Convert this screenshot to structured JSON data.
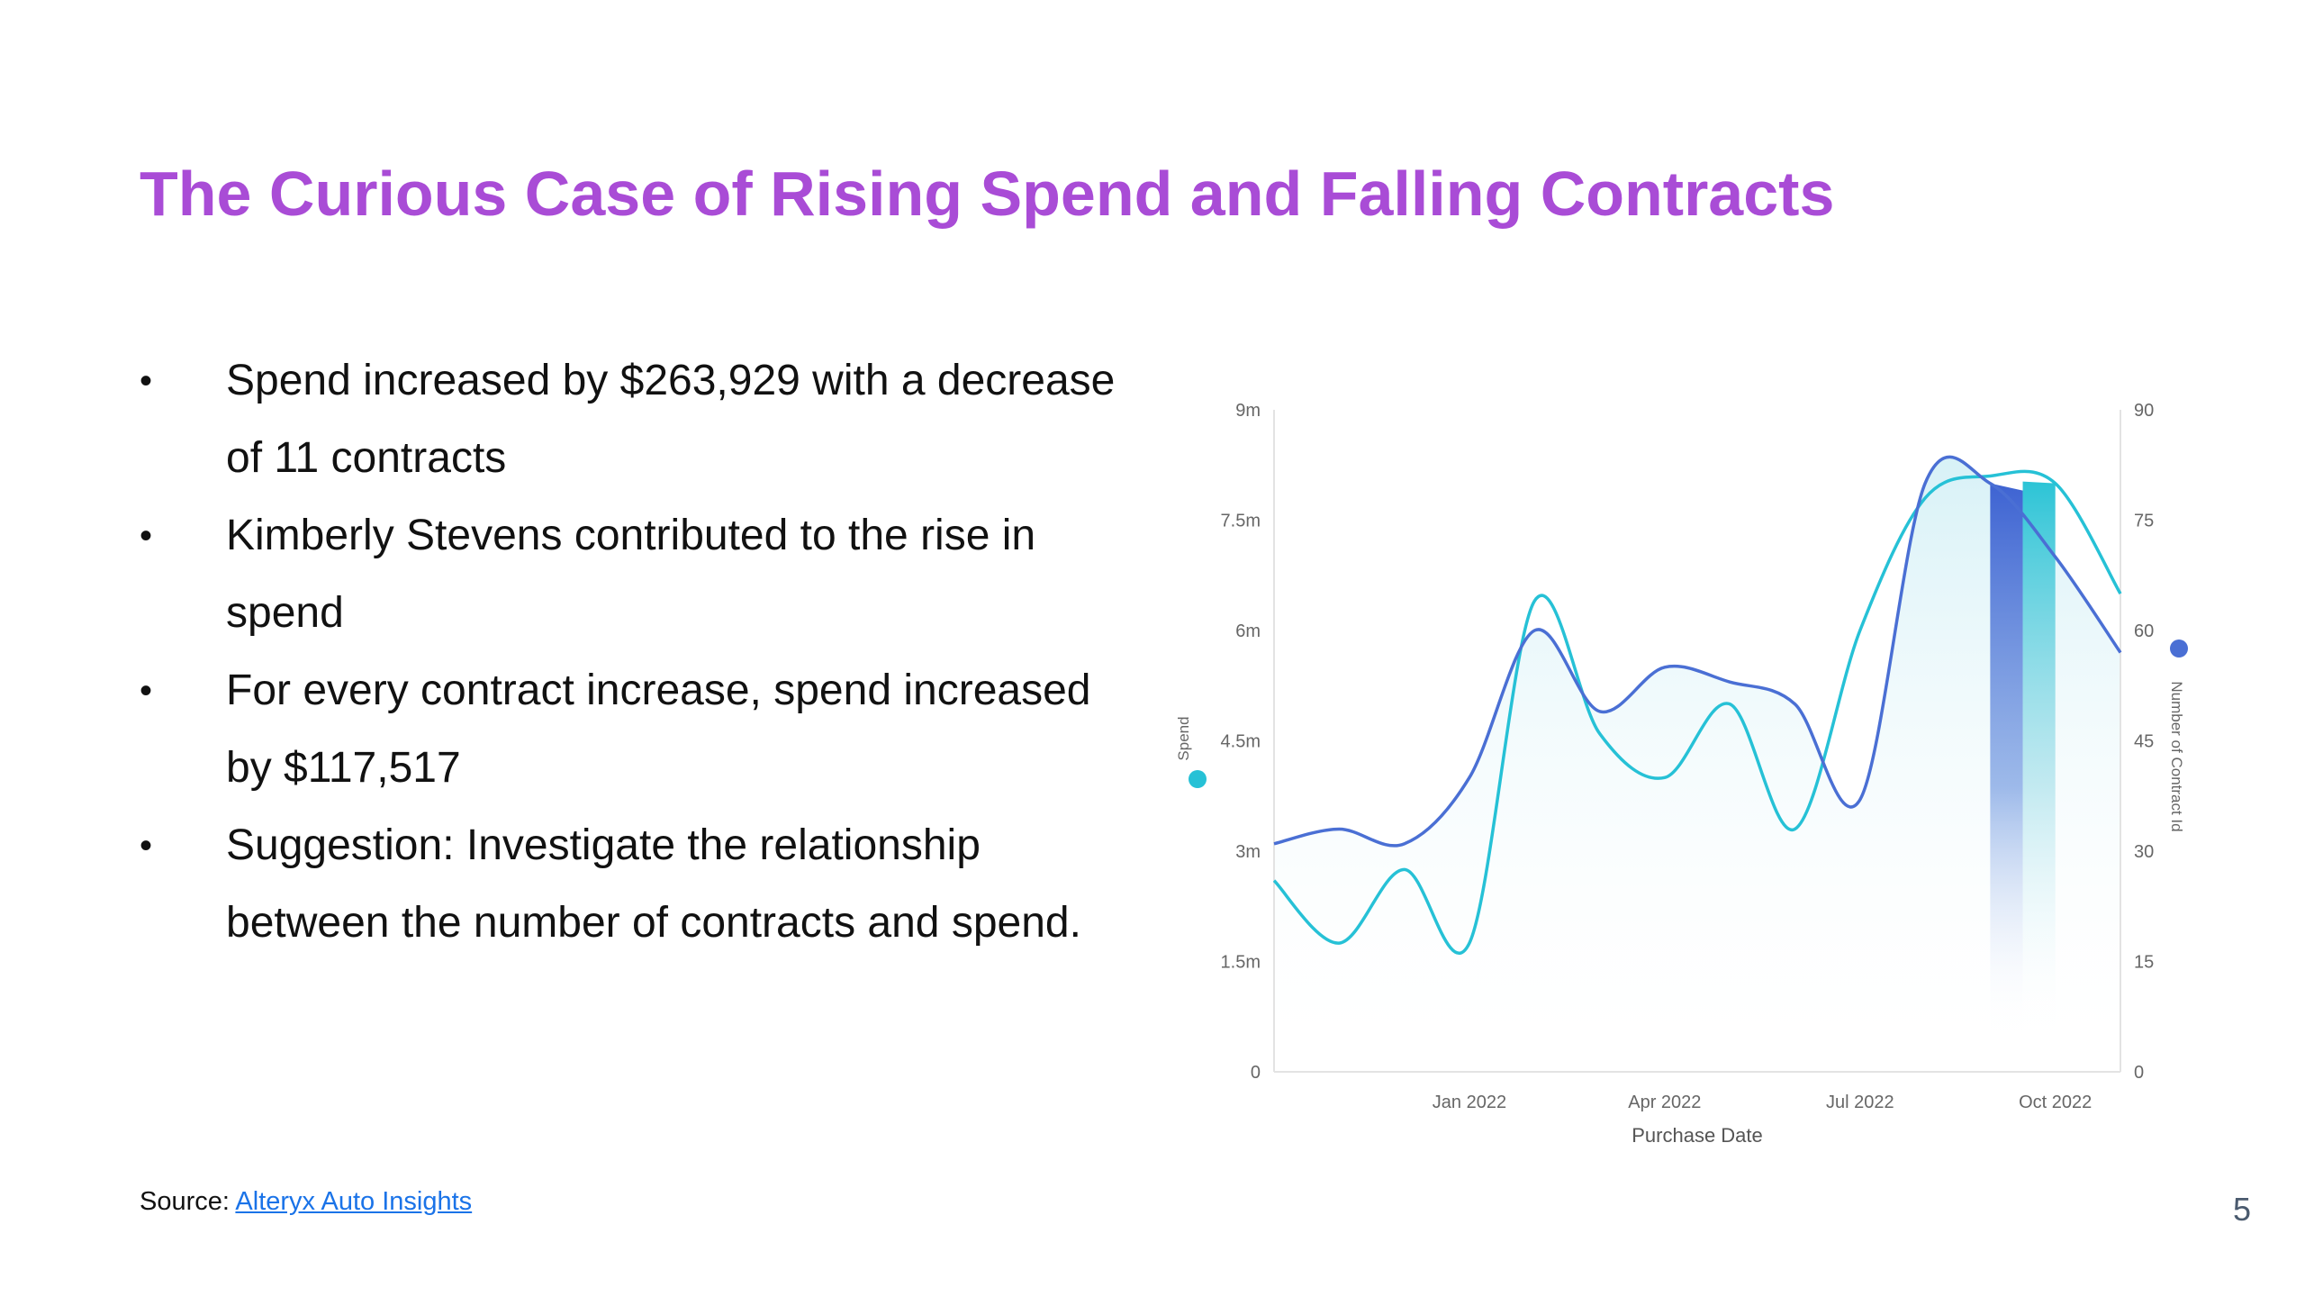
{
  "slide": {
    "title": "The Curious Case of Rising Spend and Falling Contracts",
    "bullets": [
      "Spend increased by $263,929 with a decrease of 11 contracts",
      "Kimberly Stevens contributed to the rise in spend",
      "For every contract increase, spend increased by $117,517",
      "Suggestion: Investigate the relationship between the number of contracts and spend."
    ],
    "bullet_glyph": "•",
    "source_label": "Source:",
    "source_link": "Alteryx Auto Insights",
    "page_number": "5"
  },
  "chart_data": {
    "type": "line",
    "xlabel": "Purchase Date",
    "ylabel": "Spend",
    "y2label": "Number of Contract Id",
    "x": [
      "2021-10",
      "2021-11",
      "2021-12",
      "2022-01",
      "2022-02",
      "2022-03",
      "2022-04",
      "2022-05",
      "2022-06",
      "2022-07",
      "2022-08",
      "2022-09",
      "2022-10",
      "2022-11"
    ],
    "x_ticks": [
      "Jan 2022",
      "Apr 2022",
      "Jul 2022",
      "Oct 2022"
    ],
    "ylim": [
      0,
      9000000
    ],
    "y_ticks": [
      "0",
      "1.5m",
      "3m",
      "4.5m",
      "6m",
      "7.5m",
      "9m"
    ],
    "y2lim": [
      0,
      90
    ],
    "y2_ticks": [
      "0",
      "15",
      "30",
      "45",
      "60",
      "75",
      "90"
    ],
    "series": [
      {
        "name": "Spend",
        "axis": "left",
        "color": "#26c1d6",
        "values": [
          2600000,
          1750000,
          2750000,
          1750000,
          6400000,
          4600000,
          4000000,
          5000000,
          3300000,
          6000000,
          7800000,
          8100000,
          8000000,
          6500000
        ]
      },
      {
        "name": "Number of Contract Id",
        "axis": "right",
        "color": "#4a6fd4",
        "values": [
          31,
          33,
          31,
          40,
          60,
          49,
          55,
          53,
          50,
          37,
          80,
          80,
          70,
          57
        ]
      }
    ],
    "highlight": {
      "from": "2022-09",
      "to": "2022-10"
    },
    "grid": false,
    "legend": "axis-markers"
  }
}
